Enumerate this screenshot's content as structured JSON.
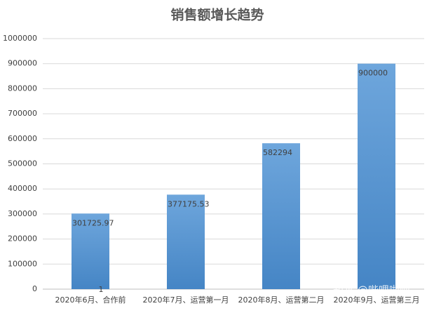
{
  "chart_data": {
    "type": "bar",
    "title": "销售额增长趋势",
    "categories": [
      "2020年6月、合作前",
      "2020年7月、运营第一月",
      "2020年8月、运营第二月",
      "2020年9月、运营第三月"
    ],
    "values": [
      301725.97,
      377175.53,
      582294,
      900000
    ],
    "color": "#5b9bd5",
    "ylim": [
      0,
      1000000
    ],
    "yticks": [
      0,
      100000,
      200000,
      300000,
      400000,
      500000,
      600000,
      700000,
      800000,
      900000,
      1000000
    ],
    "grid": true,
    "annotation": "1",
    "watermark": "知乎 @哔哩啪啦"
  }
}
